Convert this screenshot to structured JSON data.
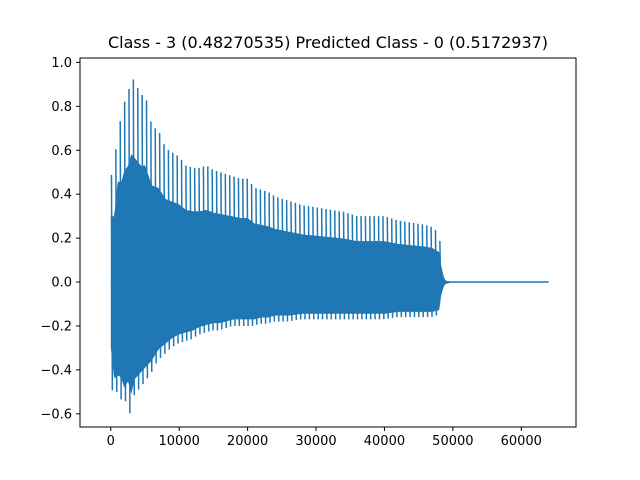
{
  "chart_data": {
    "type": "line",
    "title": "Class - 3 (0.48270535) Predicted Class - 0 (0.5172937)",
    "xlabel": "",
    "ylabel": "",
    "xlim": [
      -4500,
      68000
    ],
    "ylim": [
      -0.66,
      1.02
    ],
    "x_ticks": [
      0,
      10000,
      20000,
      30000,
      40000,
      50000,
      60000
    ],
    "x_tick_labels": [
      "0",
      "10000",
      "20000",
      "30000",
      "40000",
      "50000",
      "60000"
    ],
    "y_ticks": [
      -0.6,
      -0.4,
      -0.2,
      0.0,
      0.2,
      0.4,
      0.6,
      0.8,
      1.0
    ],
    "y_tick_labels": [
      "−0.6",
      "−0.4",
      "−0.2",
      "0.0",
      "0.2",
      "0.4",
      "0.6",
      "0.8",
      "1.0"
    ],
    "grid": false,
    "series": [
      {
        "color": "#1f77b4",
        "envelope": {
          "x": [
            0,
            500,
            1000,
            1500,
            2000,
            2500,
            3000,
            3500,
            4000,
            4500,
            5000,
            6000,
            7000,
            8000,
            9000,
            10000,
            11000,
            12000,
            13000,
            14000,
            15000,
            16000,
            17000,
            18000,
            19000,
            20000,
            21000,
            22000,
            23000,
            24000,
            25000,
            26000,
            28000,
            30000,
            32000,
            34000,
            36000,
            38000,
            40000,
            42000,
            44000,
            46000,
            47000,
            48000,
            48300,
            48700,
            49000,
            49500,
            50000,
            52000,
            56000,
            60000,
            64000
          ],
          "upper": [
            0.49,
            0.48,
            0.74,
            0.73,
            0.82,
            0.85,
            0.94,
            0.91,
            0.88,
            0.85,
            0.86,
            0.71,
            0.69,
            0.61,
            0.59,
            0.57,
            0.53,
            0.52,
            0.52,
            0.53,
            0.51,
            0.5,
            0.49,
            0.48,
            0.47,
            0.47,
            0.43,
            0.42,
            0.41,
            0.39,
            0.38,
            0.37,
            0.35,
            0.34,
            0.33,
            0.32,
            0.3,
            0.3,
            0.3,
            0.28,
            0.27,
            0.26,
            0.25,
            0.22,
            0.12,
            0.03,
            0.01,
            0.005,
            0.0,
            0.0,
            0.0,
            0.0,
            0.0
          ],
          "lower": [
            -0.35,
            -0.52,
            -0.5,
            -0.51,
            -0.57,
            -0.53,
            -0.6,
            -0.52,
            -0.5,
            -0.48,
            -0.46,
            -0.42,
            -0.36,
            -0.33,
            -0.3,
            -0.28,
            -0.27,
            -0.26,
            -0.24,
            -0.23,
            -0.22,
            -0.22,
            -0.21,
            -0.2,
            -0.2,
            -0.2,
            -0.2,
            -0.19,
            -0.19,
            -0.18,
            -0.18,
            -0.18,
            -0.17,
            -0.17,
            -0.17,
            -0.17,
            -0.17,
            -0.17,
            -0.17,
            -0.16,
            -0.16,
            -0.16,
            -0.16,
            -0.15,
            -0.07,
            -0.02,
            -0.01,
            -0.005,
            0.0,
            0.0,
            0.0,
            0.0,
            0.0
          ]
        }
      }
    ]
  }
}
